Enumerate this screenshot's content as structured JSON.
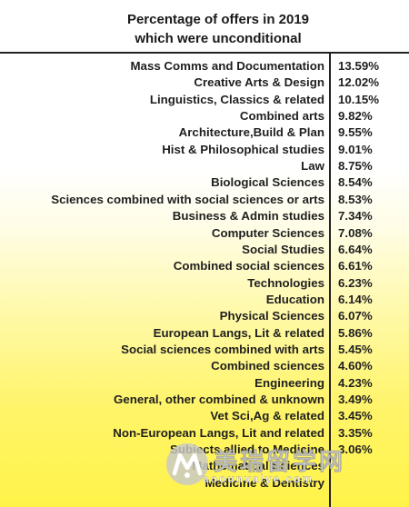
{
  "chart_data": {
    "type": "table",
    "title": "Percentage of offers in 2019",
    "subtitle": "which were unconditional",
    "categories": [
      "Mass Comms and Documentation",
      "Creative Arts & Design",
      "Linguistics, Classics & related",
      "Combined arts",
      "Architecture,Build & Plan",
      "Hist & Philosophical studies",
      "Law",
      "Biological Sciences",
      "Sciences combined with social sciences or arts",
      "Business & Admin studies",
      "Computer Sciences",
      "Social Studies",
      "Combined social sciences",
      "Technologies",
      "Education",
      "Physical Sciences",
      "European Langs, Lit & related",
      "Social sciences combined with arts",
      "Combined sciences",
      "Engineering",
      "General, other combined & unknown",
      "Vet Sci,Ag & related",
      "Non-European Langs, Lit and related",
      "Subjects allied to Medicine",
      "Mathematical Sciences",
      "Medicine & Dentistry"
    ],
    "labels": [
      "13.59%",
      "12.02%",
      "10.15%",
      "9.82%",
      "9.55%",
      "9.01%",
      "8.75%",
      "8.54%",
      "8.53%",
      "7.34%",
      "7.08%",
      "6.64%",
      "6.61%",
      "6.23%",
      "6.14%",
      "6.07%",
      "5.86%",
      "5.45%",
      "4.60%",
      "4.23%",
      "3.49%",
      "3.45%",
      "3.35%",
      "3.06%",
      "",
      ""
    ],
    "values": [
      13.59,
      12.02,
      10.15,
      9.82,
      9.55,
      9.01,
      8.75,
      8.54,
      8.53,
      7.34,
      7.08,
      6.64,
      6.61,
      6.23,
      6.14,
      6.07,
      5.86,
      5.45,
      4.6,
      4.23,
      3.49,
      3.45,
      3.35,
      3.06,
      null,
      null
    ],
    "unit": "%"
  },
  "watermark": {
    "brand_cn": "美瑞留学网",
    "url": "aoounvalye.com",
    "logo_glyph": "M"
  },
  "colors": {
    "gradient_top": "#ffffff",
    "gradient_bottom": "#fff349",
    "text": "#1f1f1f"
  }
}
